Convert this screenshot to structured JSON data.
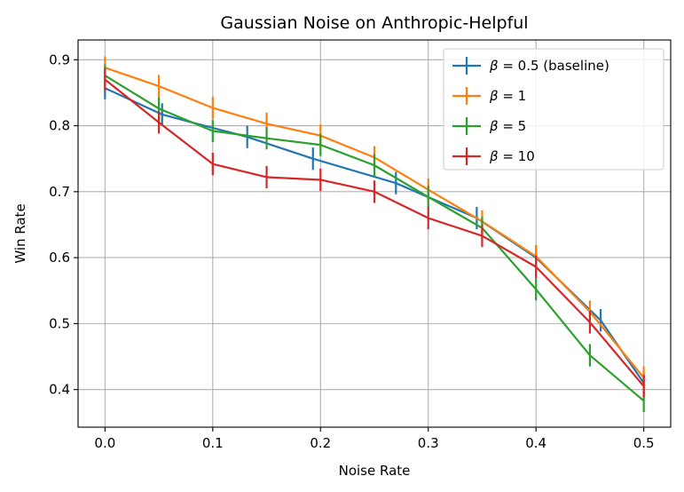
{
  "chart_data": {
    "type": "line",
    "title": "Gaussian Noise on Anthropic-Helpful",
    "xlabel": "Noise Rate",
    "ylabel": "Win Rate",
    "xlim": [
      -0.025,
      0.525
    ],
    "ylim": [
      0.343,
      0.93
    ],
    "xticks": [
      0.0,
      0.1,
      0.2,
      0.3,
      0.4,
      0.5
    ],
    "xtick_labels": [
      "0.0",
      "0.1",
      "0.2",
      "0.3",
      "0.4",
      "0.5"
    ],
    "yticks": [
      0.4,
      0.5,
      0.6,
      0.7,
      0.8,
      0.9
    ],
    "ytick_labels": [
      "0.4",
      "0.5",
      "0.6",
      "0.7",
      "0.8",
      "0.9"
    ],
    "grid": true,
    "legend_position": "top-right",
    "series": [
      {
        "name": "β = 0.5 (baseline)",
        "label_parts": {
          "symbol": "β",
          "rest": " = 0.5 (baseline)"
        },
        "color": "#1f77b4",
        "x": [
          0.0,
          0.053,
          0.132,
          0.193,
          0.27,
          0.345,
          0.4,
          0.46,
          0.5
        ],
        "y": [
          0.857,
          0.817,
          0.783,
          0.75,
          0.713,
          0.66,
          0.6,
          0.505,
          0.41
        ],
        "err": [
          0.017,
          0.017,
          0.017,
          0.017,
          0.017,
          0.017,
          0.017,
          0.017,
          0.017
        ]
      },
      {
        "name": "β = 1",
        "label_parts": {
          "symbol": "β",
          "rest": " = 1"
        },
        "color": "#ff7f0e",
        "x": [
          0.0,
          0.05,
          0.1,
          0.15,
          0.2,
          0.25,
          0.3,
          0.35,
          0.4,
          0.45,
          0.5
        ],
        "y": [
          0.888,
          0.86,
          0.827,
          0.803,
          0.785,
          0.752,
          0.703,
          0.655,
          0.602,
          0.518,
          0.418
        ],
        "err": [
          0.017,
          0.017,
          0.017,
          0.017,
          0.017,
          0.017,
          0.017,
          0.017,
          0.017,
          0.017,
          0.017
        ]
      },
      {
        "name": "β = 5",
        "label_parts": {
          "symbol": "β",
          "rest": " = 5"
        },
        "color": "#2ca02c",
        "x": [
          0.0,
          0.05,
          0.1,
          0.15,
          0.2,
          0.25,
          0.3,
          0.35,
          0.4,
          0.45,
          0.5
        ],
        "y": [
          0.876,
          0.826,
          0.792,
          0.781,
          0.771,
          0.74,
          0.692,
          0.645,
          0.552,
          0.452,
          0.383
        ],
        "err": [
          0.017,
          0.017,
          0.017,
          0.017,
          0.017,
          0.017,
          0.017,
          0.017,
          0.017,
          0.017,
          0.017
        ]
      },
      {
        "name": "β = 10",
        "label_parts": {
          "symbol": "β",
          "rest": " = 10"
        },
        "color": "#d62728",
        "x": [
          0.0,
          0.05,
          0.1,
          0.15,
          0.2,
          0.25,
          0.3,
          0.35,
          0.4,
          0.45,
          0.5
        ],
        "y": [
          0.87,
          0.805,
          0.742,
          0.722,
          0.718,
          0.7,
          0.66,
          0.633,
          0.586,
          0.502,
          0.405
        ],
        "err": [
          0.017,
          0.017,
          0.017,
          0.017,
          0.017,
          0.017,
          0.017,
          0.017,
          0.017,
          0.017,
          0.017
        ]
      }
    ]
  }
}
